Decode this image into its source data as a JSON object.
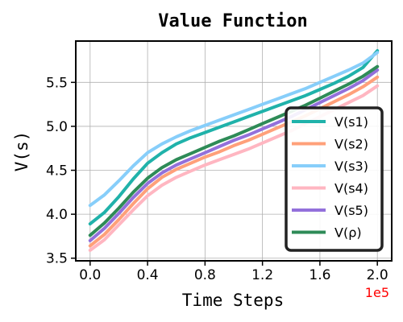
{
  "chart_data": {
    "type": "line",
    "title": "Value Function",
    "xlabel": "Time Steps",
    "ylabel": "V(s)",
    "x_multiplier_label": "1e5",
    "x_multiplier_color": "#ff0000",
    "xlim": [
      -0.1,
      2.1
    ],
    "ylim": [
      3.47,
      5.97
    ],
    "xticks": [
      0.0,
      0.4,
      0.8,
      1.2,
      1.6,
      2.0
    ],
    "xtick_labels": [
      "0.0",
      "0.4",
      "0.8",
      "1.2",
      "1.6",
      "2.0"
    ],
    "yticks": [
      3.5,
      4.0,
      4.5,
      5.0,
      5.5
    ],
    "ytick_labels": [
      "3.5",
      "4.0",
      "4.5",
      "5.0",
      "5.5"
    ],
    "grid": true,
    "legend_position": "lower-right",
    "x": [
      0.0,
      0.1,
      0.2,
      0.3,
      0.4,
      0.5,
      0.6,
      0.7,
      0.8,
      0.9,
      1.0,
      1.1,
      1.2,
      1.3,
      1.4,
      1.5,
      1.6,
      1.7,
      1.8,
      1.9,
      2.0
    ],
    "series": [
      {
        "name": "V(s1)",
        "color": "#20b2aa",
        "values": [
          3.89,
          4.02,
          4.2,
          4.4,
          4.58,
          4.7,
          4.8,
          4.87,
          4.93,
          4.99,
          5.05,
          5.11,
          5.17,
          5.23,
          5.29,
          5.35,
          5.42,
          5.49,
          5.57,
          5.67,
          5.86
        ]
      },
      {
        "name": "V(s2)",
        "color": "#ffa07a",
        "values": [
          3.64,
          3.77,
          3.94,
          4.12,
          4.29,
          4.42,
          4.51,
          4.58,
          4.65,
          4.71,
          4.78,
          4.84,
          4.91,
          4.98,
          5.05,
          5.12,
          5.2,
          5.28,
          5.36,
          5.45,
          5.56
        ]
      },
      {
        "name": "V(s3)",
        "color": "#87cefa",
        "values": [
          4.1,
          4.22,
          4.38,
          4.55,
          4.7,
          4.8,
          4.88,
          4.95,
          5.01,
          5.07,
          5.13,
          5.19,
          5.25,
          5.31,
          5.37,
          5.43,
          5.5,
          5.57,
          5.64,
          5.72,
          5.84
        ]
      },
      {
        "name": "V(s4)",
        "color": "#ffb6c1",
        "values": [
          3.59,
          3.71,
          3.88,
          4.05,
          4.21,
          4.33,
          4.42,
          4.49,
          4.56,
          4.62,
          4.68,
          4.74,
          4.81,
          4.88,
          4.95,
          5.03,
          5.11,
          5.19,
          5.27,
          5.35,
          5.46
        ]
      },
      {
        "name": "V(s5)",
        "color": "#9370db",
        "values": [
          3.7,
          3.84,
          4.01,
          4.19,
          4.35,
          4.47,
          4.56,
          4.63,
          4.7,
          4.77,
          4.84,
          4.9,
          4.97,
          5.04,
          5.11,
          5.19,
          5.27,
          5.35,
          5.43,
          5.52,
          5.64
        ]
      },
      {
        "name": "V(ρ)",
        "color": "#2e8b57",
        "values": [
          3.76,
          3.9,
          4.07,
          4.25,
          4.41,
          4.53,
          4.62,
          4.69,
          4.76,
          4.83,
          4.89,
          4.96,
          5.03,
          5.1,
          5.17,
          5.24,
          5.32,
          5.4,
          5.48,
          5.57,
          5.68
        ]
      }
    ]
  }
}
